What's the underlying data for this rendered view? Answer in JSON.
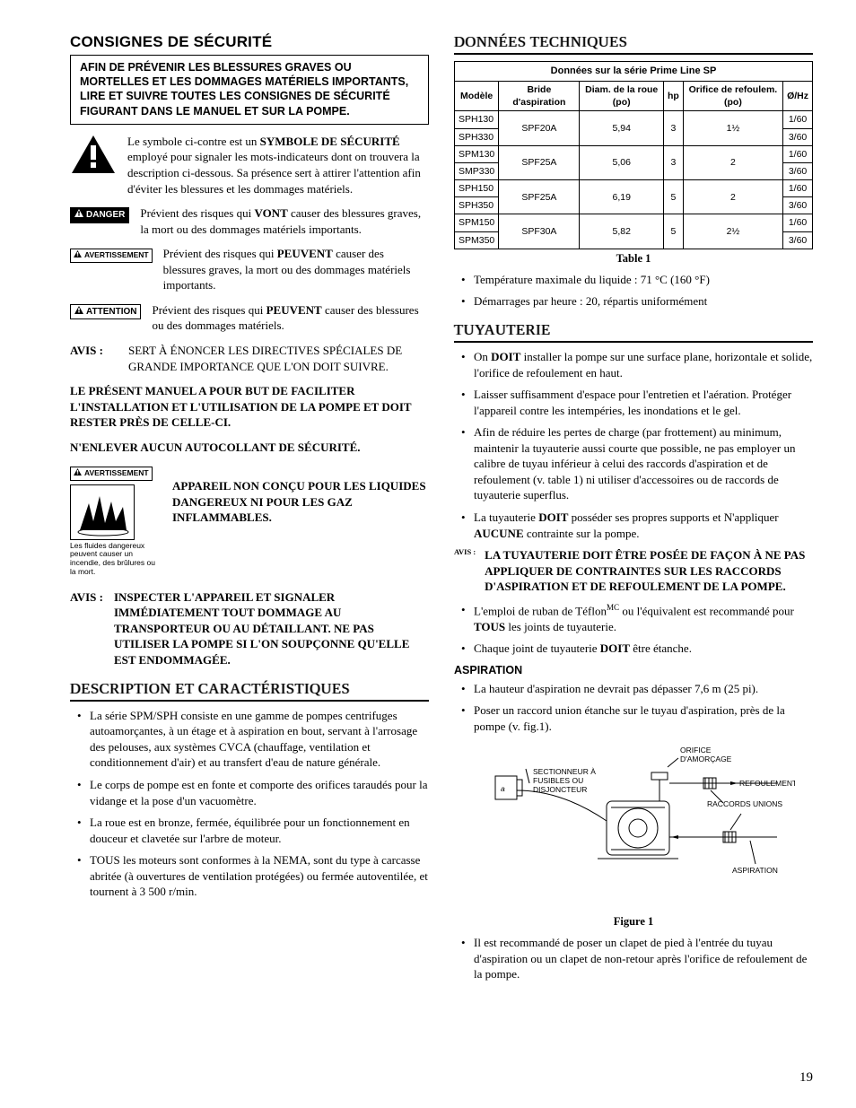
{
  "left": {
    "title": "CONSIGNES DE SÉCURITÉ",
    "warn_box": "AFIN DE PRÉVENIR LES BLESSURES GRAVES OU MORTELLES ET LES DOMMAGES MATÉRIELS IMPORTANTS, LIRE ET SUIVRE TOUTES LES CONSIGNES DE SÉCURITÉ FIGURANT DANS LE MANUEL ET SUR LA POMPE.",
    "symbol_para_pre": "Le symbole ci-contre est un ",
    "symbol_para_bold": "SYMBOLE DE SÉCURITÉ",
    "symbol_para_post": " employé pour signaler les mots-indicateurs dont on trouvera la description ci-dessous. Sa présence sert à attirer l'attention afin d'éviter les blessures et les dommages matériels.",
    "danger_label": "DANGER",
    "danger_pre": "Prévient des risques qui ",
    "danger_bold": "VONT",
    "danger_post": " causer des blessures graves, la mort ou des dommages matériels importants.",
    "avert_label": "AVERTISSEMENT",
    "avert_pre": "Prévient des risques qui ",
    "avert_bold": "PEUVENT",
    "avert_post": " causer des blessures graves, la mort ou des dommages matériels importants.",
    "attn_label": "ATTENTION",
    "attn_pre": "Prévient des risques qui ",
    "attn_bold": "PEUVENT",
    "attn_post": " causer des blessures ou des dommages matériels.",
    "avis_label": "AVIS :",
    "avis_text": "SERT À ÉNONCER LES DIRECTIVES SPÉCIALES DE GRANDE IMPORTANCE QUE L'ON DOIT SUIVRE.",
    "manual_note": "LE PRÉSENT MANUEL A POUR BUT DE FACILITER L'INSTALLATION ET L'UTILISATION DE LA POMPE ET DOIT RESTER PRÈS DE CELLE-CI.",
    "sticker_note": "N'ENLEVER AUCUN AUTOCOLLANT DE SÉCURITÉ.",
    "haz_badge": "AVERTISSEMENT",
    "haz_text": "APPAREIL NON CONÇU POUR LES LIQUIDES DANGEREUX NI POUR LES GAZ INFLAMMABLES.",
    "haz_caption": "Les fluides dangereux peuvent causer un incendie, des brûlures ou la mort.",
    "avis2_label": "AVIS :",
    "avis2_text": "INSPECTER L'APPAREIL ET SIGNALER IMMÉDIATEMENT TOUT DOMMAGE AU TRANSPORTEUR OU AU DÉTAILLANT. NE PAS UTILISER LA POMPE SI L'ON SOUPÇONNE QU'ELLE EST ENDOMMAGÉE.",
    "desc_heading": "DESCRIPTION ET CARACTÉRISTIQUES",
    "desc_items": [
      "La série SPM/SPH consiste en une gamme de pompes centrifuges autoamorçantes, à un étage et à aspiration en bout, servant à l'arrosage des pelouses, aux systèmes CVCA (chauffage, ventilation et conditionnement d'air) et au transfert d'eau de nature générale.",
      "Le corps de pompe est en fonte et comporte des orifices taraudés pour la vidange et la pose d'un vacuomètre.",
      "La roue est en bronze, fermée, équilibrée pour un fonctionnement en douceur et clavetée sur l'arbre de moteur.",
      "TOUS les moteurs sont conformes à la NEMA, sont du type à carcasse abritée (à ouvertures de ventilation protégées) ou fermée autoventilée, et tournent à 3 500 r/min."
    ]
  },
  "right": {
    "data_heading": "DONNÉES TECHNIQUES",
    "table": {
      "title": "Données sur la série Prime Line SP",
      "headers": [
        "Modèle",
        "Bride d'aspiration",
        "Diam. de la roue (po)",
        "hp",
        "Orifice de refoulem. (po)",
        "Ø/Hz"
      ],
      "rows": [
        {
          "m": [
            "SPH130",
            "SPH330"
          ],
          "b": "SPF20A",
          "d": "5,94",
          "hp": "3",
          "o": "1½",
          "hz": [
            "1/60",
            "3/60"
          ]
        },
        {
          "m": [
            "SPM130",
            "SMP330"
          ],
          "b": "SPF25A",
          "d": "5,06",
          "hp": "3",
          "o": "2",
          "hz": [
            "1/60",
            "3/60"
          ]
        },
        {
          "m": [
            "SPH150",
            "SPH350"
          ],
          "b": "SPF25A",
          "d": "6,19",
          "hp": "5",
          "o": "2",
          "hz": [
            "1/60",
            "3/60"
          ]
        },
        {
          "m": [
            "SPM150",
            "SPM350"
          ],
          "b": "SPF30A",
          "d": "5,82",
          "hp": "5",
          "o": "2½",
          "hz": [
            "1/60",
            "3/60"
          ]
        }
      ]
    },
    "table_cap": "Table 1",
    "temp_item": "Température maximale du liquide : 71 °C (160 °F)",
    "start_item": "Démarrages par heure : 20, répartis uniformément",
    "tuy_heading": "TUYAUTERIE",
    "tuy_items": [
      {
        "pre": "On ",
        "bold": "DOIT",
        "post": " installer la pompe sur une surface plane, horizontale et solide, l'orifice de refoulement en haut."
      },
      {
        "pre": "",
        "bold": "",
        "post": "Laisser suffisamment d'espace pour l'entretien et l'aération. Protéger l'appareil contre les intempéries, les inondations et le gel."
      },
      {
        "pre": "",
        "bold": "",
        "post": "Afin de réduire les pertes de charge (par frottement) au minimum, maintenir la tuyauterie aussi courte que possible, ne pas employer un calibre de tuyau inférieur à celui des raccords d'aspiration et de refoulement (v. table 1) ni utiliser d'accessoires ou de raccords de tuyauterie superflus."
      },
      {
        "pre": "La tuyauterie ",
        "bold": "DOIT",
        "post": " posséder ses propres supports et N'appliquer ",
        "bold2": "AUCUNE",
        "post2": " contrainte sur la pompe."
      }
    ],
    "avis_block_lbl": "AVIS :",
    "avis_block_txt": "LA TUYAUTERIE DOIT ÊTRE POSÉE DE FAÇON À NE PAS APPLIQUER DE CONTRAINTES SUR LES RACCORDS D'ASPIRATION ET DE REFOULEMENT DE LA POMPE.",
    "teflon_pre": "L'emploi de ruban de Téflon",
    "teflon_sup": "MC",
    "teflon_mid": " ou l'équivalent est recommandé pour ",
    "teflon_bold": "TOUS",
    "teflon_post": " les joints de tuyauterie.",
    "joint_pre": "Chaque joint de tuyauterie ",
    "joint_bold": "DOIT",
    "joint_post": " être étanche.",
    "asp_heading": "ASPIRATION",
    "asp_items": [
      "La hauteur d'aspiration ne devrait pas dépasser 7,6 m (25 pi).",
      "Poser un raccord union étanche sur le tuyau d'aspiration, près de la pompe (v. fig.1)."
    ],
    "fig_labels": {
      "fuse": "SECTIONNEUR À FUSIBLES OU DISJONCTEUR",
      "prime": "ORIFICE D'AMORÇAGE",
      "disch": "REFOULEMENT",
      "union": "RACCORDS UNIONS",
      "suct": "ASPIRATION"
    },
    "fig_cap": "Figure 1",
    "fig_post": "Il est recommandé de poser un clapet de pied à l'entrée du tuyau d'aspiration ou un clapet de non-retour après l'orifice de refoulement de la pompe."
  },
  "pagenum": "19",
  "colors": {
    "text": "#000000",
    "shadow": "#999999"
  }
}
